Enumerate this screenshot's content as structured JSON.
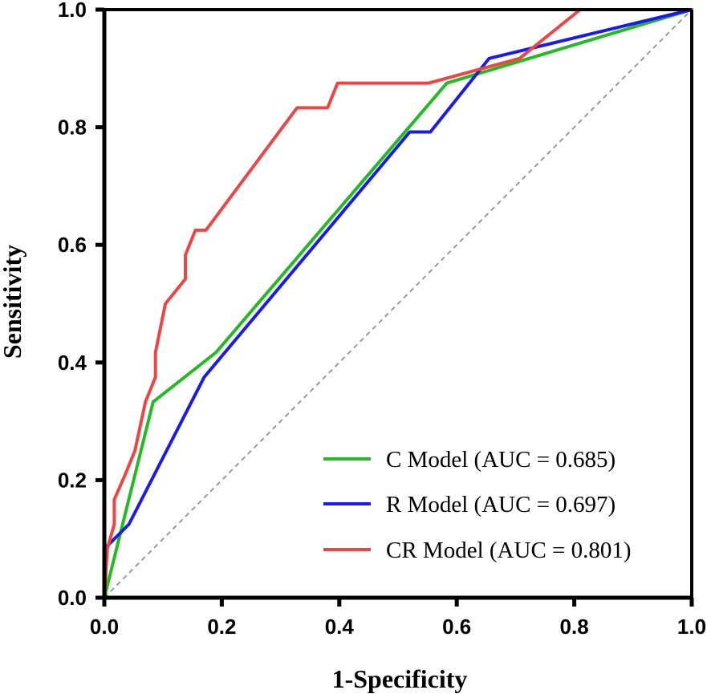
{
  "chart_data": {
    "type": "line",
    "title": "",
    "xlabel": "1-Specificity",
    "ylabel": "Sensitivity",
    "xlim": [
      0,
      1
    ],
    "ylim": [
      0,
      1
    ],
    "xticks": [
      "0.0",
      "0.2",
      "0.4",
      "0.6",
      "0.8",
      "1.0"
    ],
    "yticks": [
      "0.0",
      "0.2",
      "0.4",
      "0.6",
      "0.8",
      "1.0"
    ],
    "grid": false,
    "legend_position": "bottom-right",
    "reference_line": {
      "from": [
        0,
        0
      ],
      "to": [
        1,
        1
      ],
      "style": "dashed",
      "color": "#999999"
    },
    "series": [
      {
        "name": "C Model (AUC = 0.685)",
        "color": "#22bb22",
        "points": [
          [
            0,
            0
          ],
          [
            0.083,
            0.333
          ],
          [
            0.19,
            0.417
          ],
          [
            0.583,
            0.875
          ],
          [
            1.0,
            1.0
          ]
        ]
      },
      {
        "name": "R Model (AUC = 0.697)",
        "color": "#1a1aee",
        "points": [
          [
            0,
            0
          ],
          [
            0,
            0.083
          ],
          [
            0.042,
            0.125
          ],
          [
            0.17,
            0.375
          ],
          [
            0.52,
            0.792
          ],
          [
            0.555,
            0.792
          ],
          [
            0.655,
            0.917
          ],
          [
            1.0,
            1.0
          ]
        ]
      },
      {
        "name": "CR Model (AUC = 0.801)",
        "color": "#ee4444",
        "points": [
          [
            0,
            0
          ],
          [
            0.005,
            0.083
          ],
          [
            0.017,
            0.125
          ],
          [
            0.017,
            0.167
          ],
          [
            0.035,
            0.208
          ],
          [
            0.052,
            0.25
          ],
          [
            0.07,
            0.333
          ],
          [
            0.087,
            0.375
          ],
          [
            0.087,
            0.417
          ],
          [
            0.104,
            0.5
          ],
          [
            0.138,
            0.542
          ],
          [
            0.138,
            0.583
          ],
          [
            0.155,
            0.625
          ],
          [
            0.173,
            0.625
          ],
          [
            0.328,
            0.833
          ],
          [
            0.38,
            0.833
          ],
          [
            0.397,
            0.875
          ],
          [
            0.552,
            0.875
          ],
          [
            0.707,
            0.917
          ],
          [
            0.81,
            1.0
          ],
          [
            1.0,
            1.0
          ]
        ]
      }
    ]
  }
}
